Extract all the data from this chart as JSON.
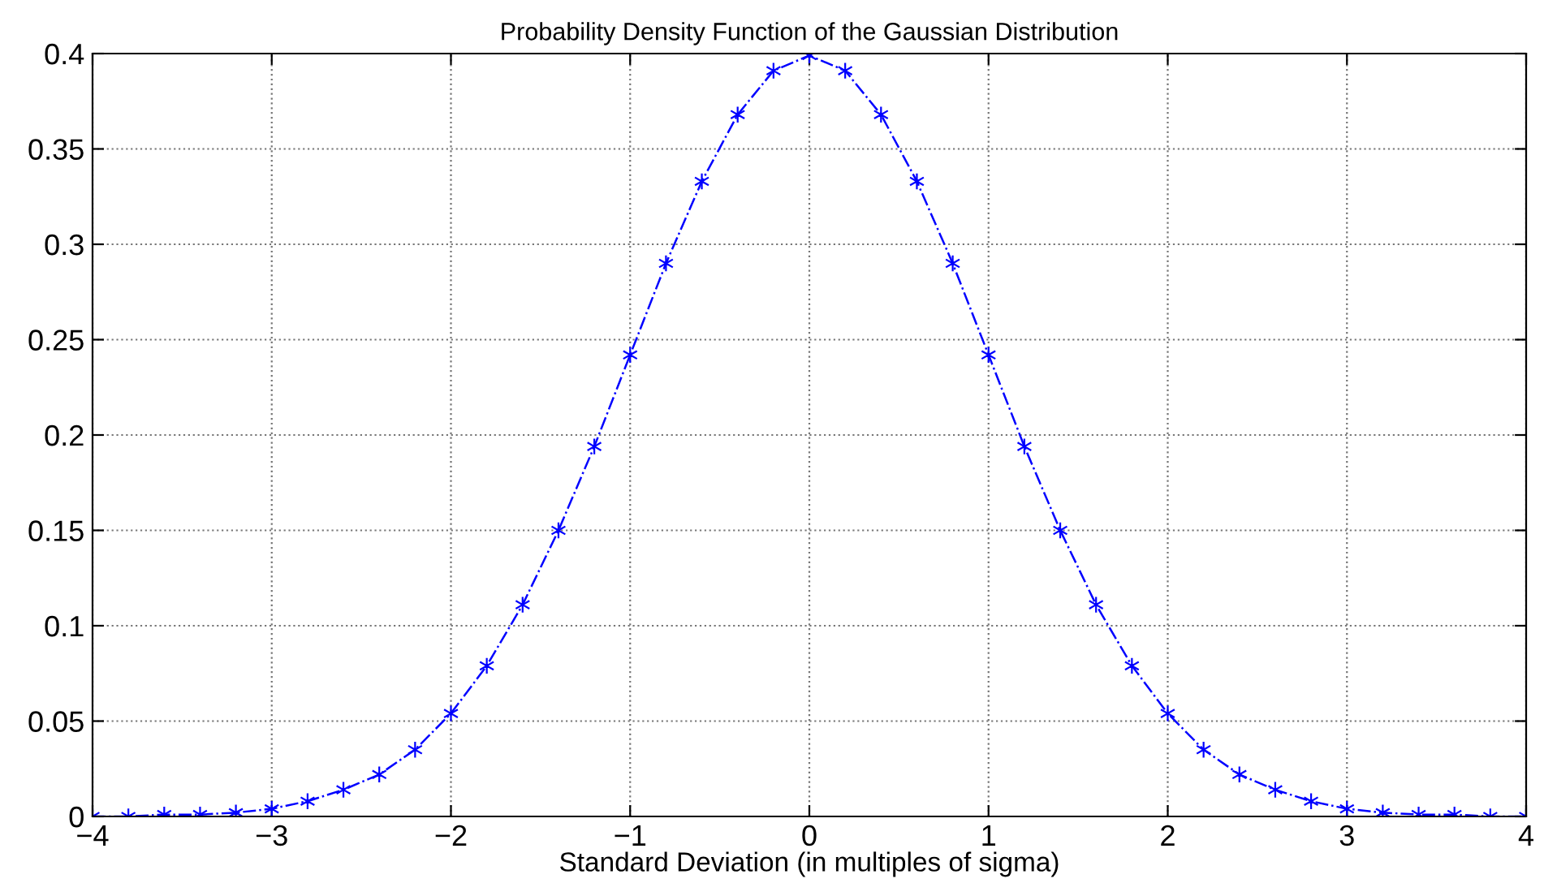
{
  "chart_data": {
    "type": "line",
    "title": "Probability Density Function of the Gaussian Distribution",
    "xlabel": "Standard Deviation (in multiples of sigma)",
    "x": [
      -4,
      -3.8,
      -3.6,
      -3.4,
      -3.2,
      -3,
      -2.8,
      -2.6,
      -2.4,
      -2.2,
      -2,
      -1.8,
      -1.6,
      -1.4,
      -1.2,
      -1,
      -0.8,
      -0.6,
      -0.4,
      -0.2,
      0,
      0.2,
      0.4,
      0.6,
      0.8,
      1,
      1.2,
      1.4,
      1.6,
      1.8,
      2,
      2.2,
      2.4,
      2.6,
      2.8,
      3,
      3.2,
      3.4,
      3.6,
      3.8,
      4
    ],
    "series": [
      {
        "color": "#0000ff",
        "values": [
          0.0,
          0.0,
          0.001,
          0.001,
          0.002,
          0.004,
          0.008,
          0.014,
          0.022,
          0.035,
          0.054,
          0.079,
          0.111,
          0.15,
          0.194,
          0.242,
          0.29,
          0.333,
          0.368,
          0.391,
          0.399,
          0.391,
          0.368,
          0.333,
          0.29,
          0.242,
          0.194,
          0.15,
          0.111,
          0.079,
          0.054,
          0.035,
          0.022,
          0.014,
          0.008,
          0.004,
          0.002,
          0.001,
          0.001,
          0.0,
          0.0
        ]
      }
    ],
    "xlim": [
      -4,
      4
    ],
    "xticks": [
      {
        "value": -4,
        "label": "−4"
      },
      {
        "value": -3,
        "label": "−3"
      },
      {
        "value": -2,
        "label": "−2"
      },
      {
        "value": -1,
        "label": "−1"
      },
      0,
      1,
      2,
      3,
      4
    ],
    "ylim": [
      0,
      0.4
    ],
    "yticks": [
      0,
      0.05,
      0.1,
      0.15,
      0.2,
      0.25,
      0.3,
      0.35,
      0.4
    ],
    "grid": true,
    "marker": "cross",
    "line_style": "dashdot"
  }
}
